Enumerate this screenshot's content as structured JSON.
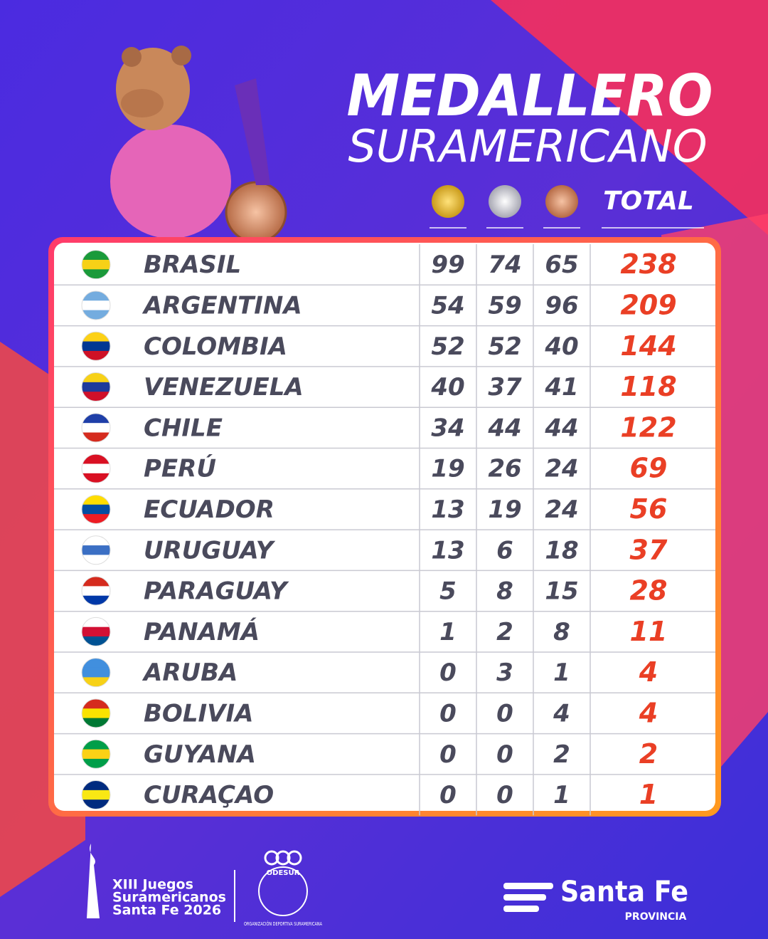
{
  "header": {
    "title": "MEDALLERO",
    "subtitle": "SURAMERICANO",
    "total_label": "TOTAL"
  },
  "table": {
    "rows": [
      {
        "country": "BRASIL",
        "gold": 99,
        "silver": 74,
        "bronze": 65,
        "total": 238
      },
      {
        "country": "ARGENTINA",
        "gold": 54,
        "silver": 59,
        "bronze": 96,
        "total": 209
      },
      {
        "country": "COLOMBIA",
        "gold": 52,
        "silver": 52,
        "bronze": 40,
        "total": 144
      },
      {
        "country": "VENEZUELA",
        "gold": 40,
        "silver": 37,
        "bronze": 41,
        "total": 118
      },
      {
        "country": "CHILE",
        "gold": 34,
        "silver": 44,
        "bronze": 44,
        "total": 122
      },
      {
        "country": "PERÚ",
        "gold": 19,
        "silver": 26,
        "bronze": 24,
        "total": 69
      },
      {
        "country": "ECUADOR",
        "gold": 13,
        "silver": 19,
        "bronze": 24,
        "total": 56
      },
      {
        "country": "URUGUAY",
        "gold": 13,
        "silver": 6,
        "bronze": 18,
        "total": 37
      },
      {
        "country": "PARAGUAY",
        "gold": 5,
        "silver": 8,
        "bronze": 15,
        "total": 28
      },
      {
        "country": "PANAMÁ",
        "gold": 1,
        "silver": 2,
        "bronze": 8,
        "total": 11
      },
      {
        "country": "ARUBA",
        "gold": 0,
        "silver": 3,
        "bronze": 1,
        "total": 4
      },
      {
        "country": "BOLIVIA",
        "gold": 0,
        "silver": 0,
        "bronze": 4,
        "total": 4
      },
      {
        "country": "GUYANA",
        "gold": 0,
        "silver": 0,
        "bronze": 2,
        "total": 2
      },
      {
        "country": "CURAÇAO",
        "gold": 0,
        "silver": 0,
        "bronze": 1,
        "total": 1
      }
    ]
  },
  "footer": {
    "games_lines": [
      "XIII Juegos",
      "Suramericanos",
      "Santa Fe 2026"
    ],
    "odesur": "ODESUR",
    "odesur_full": "ORGANIZACIÓN DEPORTIVA SURAMERICANA",
    "province_name": "Santa Fe",
    "province_label": "PROVINCIA"
  }
}
